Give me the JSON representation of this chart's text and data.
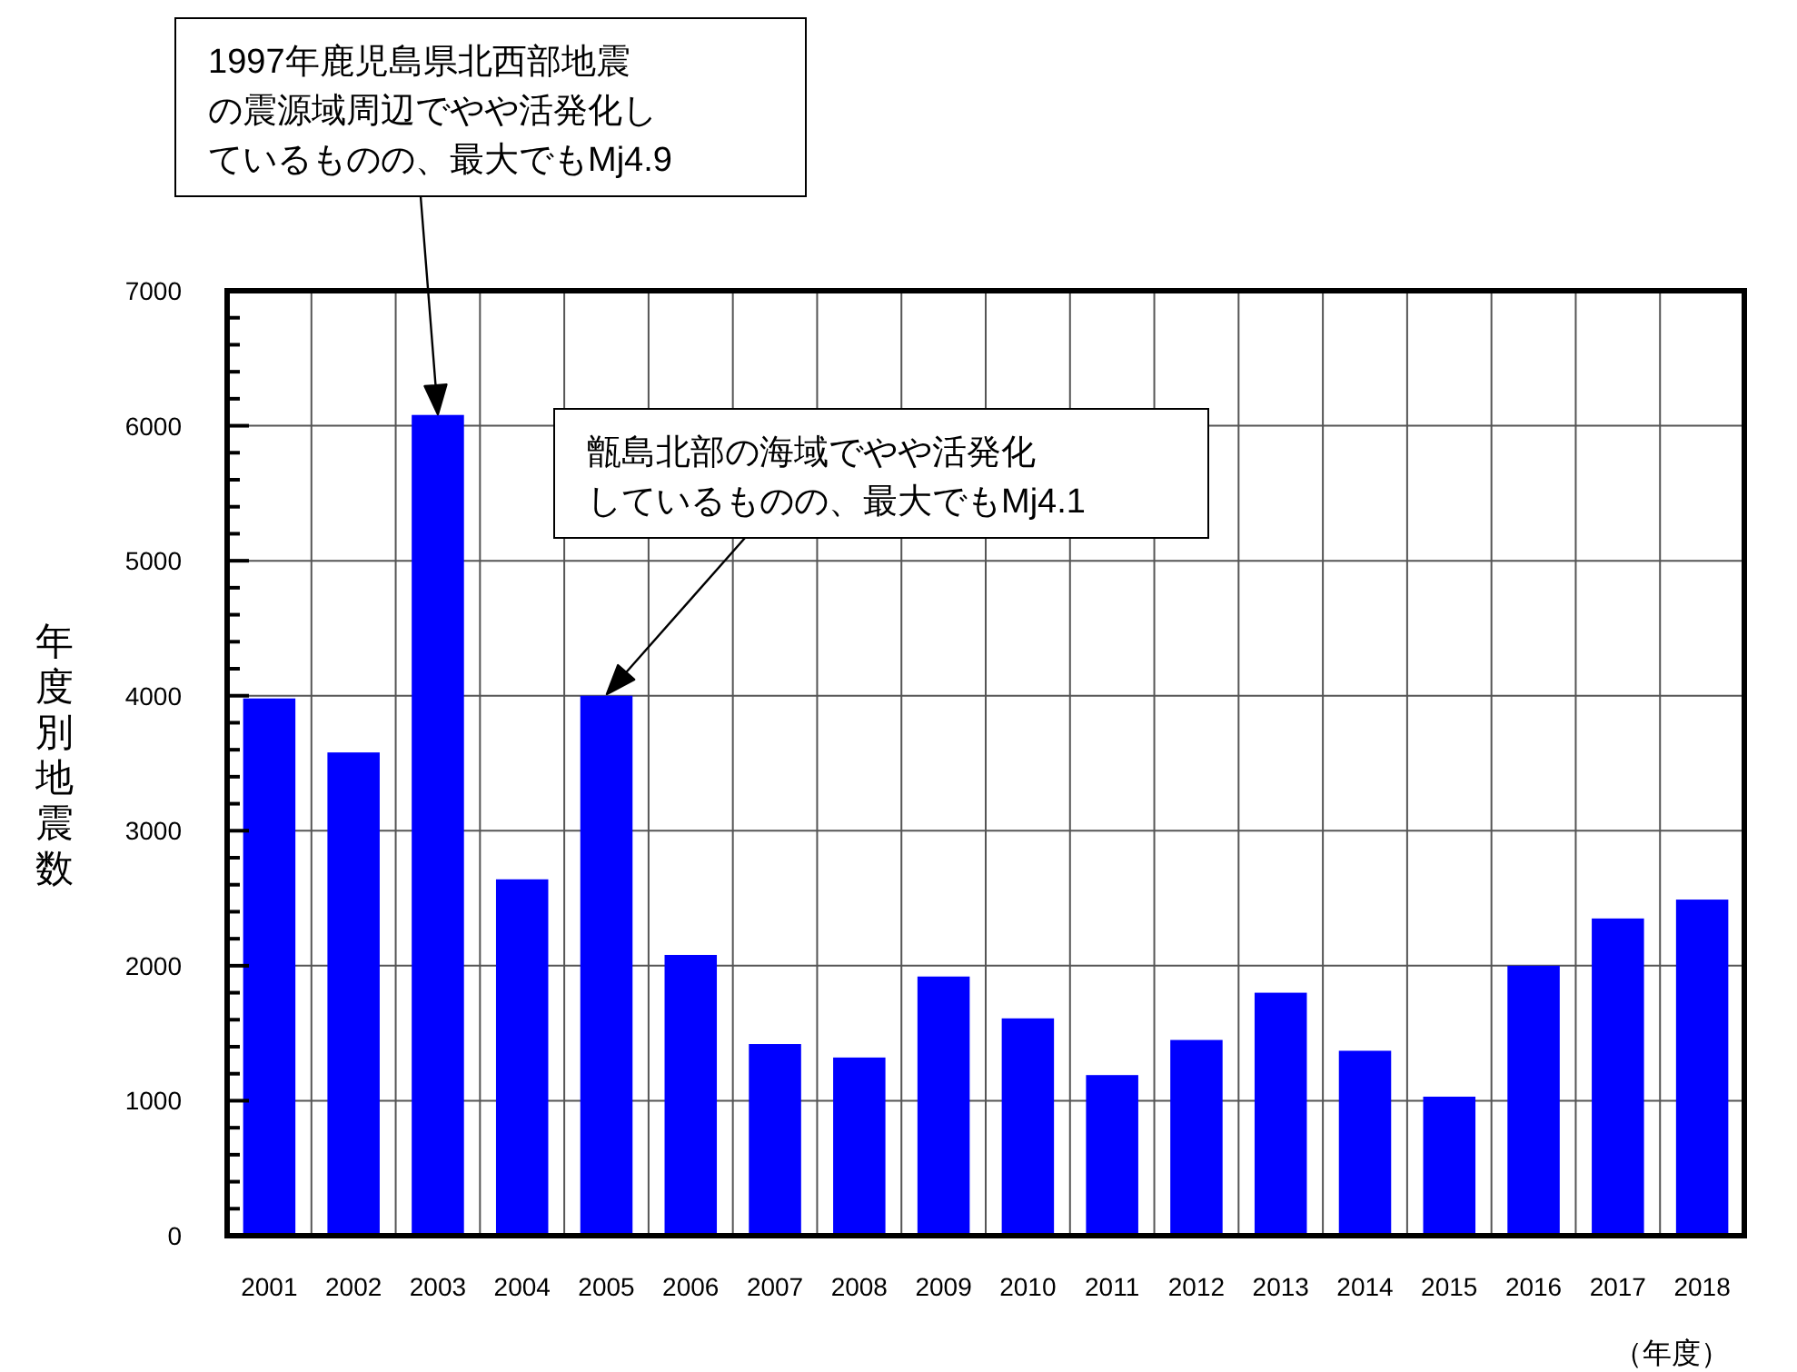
{
  "chart_data": {
    "type": "bar",
    "ylabel": "年度別地震数",
    "xlabel": "（年度）",
    "annotations": [
      {
        "text": "1997年鹿児島県北西部地震の震源域周辺でやや活発化しているものの、最大でもMj4.9"
      },
      {
        "text": "甑島北部の海域でやや活発化しているものの、最大でもMj4.1"
      }
    ],
    "categories": [
      "2001",
      "2002",
      "2003",
      "2004",
      "2005",
      "2006",
      "2007",
      "2008",
      "2009",
      "2010",
      "2011",
      "2012",
      "2013",
      "2014",
      "2015",
      "2016",
      "2017",
      "2018"
    ],
    "values": [
      3980,
      3580,
      6080,
      2640,
      4000,
      2080,
      1420,
      1320,
      1920,
      1610,
      1190,
      1450,
      1800,
      1370,
      1030,
      2000,
      2350,
      2490
    ],
    "color": "#0000ff",
    "ylim": [
      0,
      7000
    ],
    "yticks": [
      0,
      1000,
      2000,
      3000,
      4000,
      5000,
      6000,
      7000
    ],
    "grid": true
  }
}
